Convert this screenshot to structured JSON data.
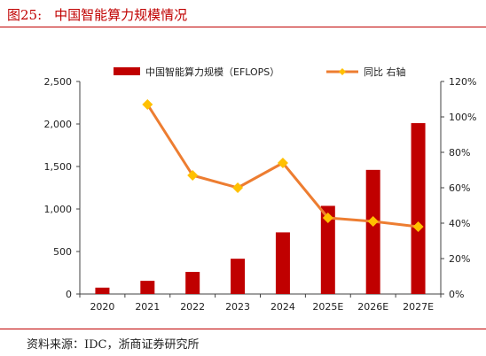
{
  "figure": {
    "label": "图25:",
    "title": "中国智能算力规模情况",
    "source": "资料来源：IDC，浙商证券研究所"
  },
  "chart_data": {
    "type": "bar",
    "categories": [
      "2020",
      "2021",
      "2022",
      "2023",
      "2024",
      "2025E",
      "2026E",
      "2027E"
    ],
    "series": [
      {
        "name": "中国智能算力规模（EFLOPS）",
        "type": "bar",
        "axis": "left",
        "color": "#c00000",
        "values": [
          75,
          155,
          260,
          415,
          725,
          1037,
          1460,
          2010
        ]
      },
      {
        "name": "同比 右轴",
        "type": "line",
        "axis": "right",
        "color": "#ed7d31",
        "marker_color": "#ffc000",
        "values": [
          null,
          107,
          67,
          60,
          74,
          43,
          41,
          38
        ]
      }
    ],
    "y_left": {
      "lim": [
        0,
        2500
      ],
      "ticks": [
        "0",
        "500",
        "1,000",
        "1,500",
        "2,000",
        "2,500"
      ]
    },
    "y_right": {
      "lim": [
        0,
        120
      ],
      "ticks": [
        "0%",
        "20%",
        "40%",
        "60%",
        "80%",
        "100%",
        "120%"
      ]
    },
    "legend_position": "top",
    "grid": false
  }
}
